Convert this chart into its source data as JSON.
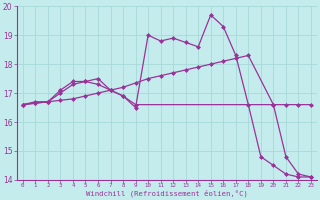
{
  "xlabel": "Windchill (Refroidissement éolien,°C)",
  "xlim": [
    -0.5,
    23.5
  ],
  "ylim": [
    14,
    20
  ],
  "yticks": [
    14,
    15,
    16,
    17,
    18,
    19,
    20
  ],
  "xticks": [
    0,
    1,
    2,
    3,
    4,
    5,
    6,
    7,
    8,
    9,
    10,
    11,
    12,
    13,
    14,
    15,
    16,
    17,
    18,
    19,
    20,
    21,
    22,
    23
  ],
  "bg_color": "#c5ecec",
  "line_color": "#993399",
  "grid_color": "#a8d8d8",
  "line1_x": [
    0,
    1,
    2,
    3,
    4,
    5,
    6,
    7,
    8,
    9,
    10,
    11,
    12,
    13,
    14,
    15,
    16,
    17,
    18,
    19,
    20,
    21,
    22,
    23
  ],
  "line1_y": [
    16.6,
    16.7,
    16.7,
    17.1,
    17.4,
    17.4,
    17.3,
    17.1,
    16.9,
    16.5,
    19.0,
    18.8,
    18.9,
    18.75,
    18.6,
    19.7,
    19.3,
    18.3,
    16.6,
    14.8,
    14.5,
    14.2,
    14.1,
    14.1
  ],
  "line2_x": [
    0,
    1,
    2,
    3,
    4,
    5,
    6,
    7,
    8,
    9,
    10,
    11,
    12,
    13,
    14,
    15,
    16,
    17,
    18,
    20,
    21,
    22,
    23
  ],
  "line2_y": [
    16.6,
    16.65,
    16.7,
    16.75,
    16.8,
    16.9,
    17.0,
    17.1,
    17.2,
    17.35,
    17.5,
    17.6,
    17.7,
    17.8,
    17.9,
    18.0,
    18.1,
    18.2,
    18.3,
    16.6,
    16.6,
    16.6,
    16.6
  ],
  "line3_x": [
    0,
    1,
    2,
    3,
    4,
    5,
    6,
    7,
    8,
    9,
    20,
    21,
    22,
    23
  ],
  "line3_y": [
    16.6,
    16.65,
    16.7,
    17.0,
    17.3,
    17.4,
    17.5,
    17.1,
    16.9,
    16.6,
    16.6,
    14.8,
    14.2,
    14.1
  ],
  "marker": "D",
  "markersize": 2,
  "linewidth": 0.9
}
